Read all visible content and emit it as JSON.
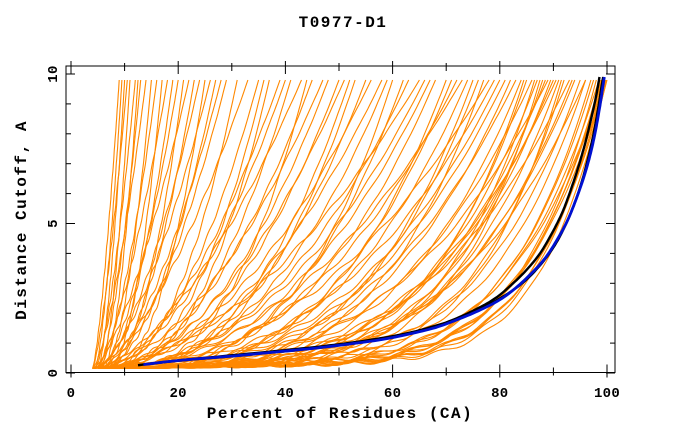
{
  "chart_data": {
    "type": "line",
    "title": "T0977-D1",
    "xlabel": "Percent of Residues (CA)",
    "ylabel": "Distance Cutoff, A",
    "xlim": [
      0,
      100
    ],
    "ylim": [
      0,
      10
    ],
    "grid": false,
    "legend": "none",
    "axes": {
      "x_major_ticks": [
        0,
        20,
        40,
        60,
        80,
        100
      ],
      "x_major_labels": [
        "0",
        "20",
        "40",
        "60",
        "80",
        "100"
      ],
      "x_minor_ticks": [
        10,
        30,
        50,
        70,
        90
      ],
      "y_major_ticks": [
        0,
        5,
        10
      ],
      "y_major_labels": [
        "0",
        "5",
        "10"
      ],
      "y_minor_ticks": [
        1,
        2,
        3,
        4,
        6,
        7,
        8,
        9
      ]
    },
    "colors": {
      "model_curves": "#ff8800",
      "reference_curves": "#000000",
      "highlight_curve": "#0010d0",
      "border": "#000000",
      "background": "#ffffff"
    },
    "curve_top_cutoff": 9.8,
    "curve_start_cutoff": 0.15,
    "series_orange_params_note": "each entry = [percent_at_start, percent_at_top, shape_exponent] for curve cutoff(u)=0.15+0.35u+9.3u^k, u in [0,1], percent=x0+(xe-x0)u",
    "series_orange_params": [
      [
        4,
        9,
        1.4
      ],
      [
        4.5,
        9.5,
        1.5
      ],
      [
        5,
        10,
        1.6
      ],
      [
        4,
        10.5,
        1.4
      ],
      [
        5.5,
        11,
        1.7
      ],
      [
        4.5,
        12,
        1.5
      ],
      [
        6,
        12.5,
        1.8
      ],
      [
        5,
        13,
        1.6
      ],
      [
        4,
        14,
        1.5
      ],
      [
        6,
        15,
        1.9
      ],
      [
        5,
        16,
        1.6
      ],
      [
        7,
        17,
        2
      ],
      [
        4.5,
        18,
        1.5
      ],
      [
        6,
        19,
        1.8
      ],
      [
        5,
        20,
        1.7
      ],
      [
        7,
        21,
        2
      ],
      [
        4,
        22,
        1.5
      ],
      [
        6,
        23,
        1.9
      ],
      [
        5,
        24,
        1.6
      ],
      [
        8,
        25,
        2.1
      ],
      [
        4.5,
        26,
        1.6
      ],
      [
        6,
        27,
        1.9
      ],
      [
        5,
        28,
        1.7
      ],
      [
        5,
        29,
        1.8
      ],
      [
        7,
        31,
        2.2
      ],
      [
        4,
        33,
        1.6
      ],
      [
        6,
        35,
        2
      ],
      [
        8,
        37,
        2.4
      ],
      [
        5,
        39,
        1.8
      ],
      [
        7,
        41,
        2.2
      ],
      [
        4,
        43,
        1.7
      ],
      [
        6,
        45,
        2
      ],
      [
        9,
        44,
        2.6
      ],
      [
        5,
        40,
        1.9
      ],
      [
        7,
        36,
        2.3
      ],
      [
        4,
        47,
        1.9
      ],
      [
        6,
        50,
        2.2
      ],
      [
        8,
        53,
        2.6
      ],
      [
        5,
        56,
        2
      ],
      [
        7,
        59,
        2.4
      ],
      [
        9,
        62,
        2.8
      ],
      [
        4,
        65,
        1.9
      ],
      [
        6,
        48,
        2.1
      ],
      [
        8,
        52,
        2.5
      ],
      [
        5,
        58,
        2.1
      ],
      [
        10,
        60,
        3
      ],
      [
        6,
        63,
        2.3
      ],
      [
        7,
        55,
        2.4
      ],
      [
        5,
        51,
        2
      ],
      [
        5,
        66,
        2.3
      ],
      [
        7,
        68,
        2.7
      ],
      [
        9,
        70,
        3.1
      ],
      [
        6,
        72,
        2.5
      ],
      [
        8,
        74,
        2.9
      ],
      [
        10,
        76,
        3.3
      ],
      [
        5,
        78,
        2.3
      ],
      [
        7,
        80,
        2.8
      ],
      [
        9,
        82,
        3.2
      ],
      [
        6,
        67,
        2.4
      ],
      [
        8,
        71,
        3
      ],
      [
        10,
        75,
        3.4
      ],
      [
        6,
        79,
        2.6
      ],
      [
        7,
        81,
        2.9
      ],
      [
        11,
        77,
        3.6
      ],
      [
        5,
        73,
        2.2
      ],
      [
        6,
        83,
        3
      ],
      [
        8,
        84,
        3.6
      ],
      [
        10,
        85,
        4.2
      ],
      [
        7,
        86,
        3.3
      ],
      [
        9,
        87,
        3.9
      ],
      [
        11,
        88,
        4.5
      ],
      [
        6,
        89,
        3.1
      ],
      [
        8,
        90,
        3.7
      ],
      [
        10,
        91,
        4.3
      ],
      [
        12,
        92,
        4.9
      ],
      [
        7,
        93,
        3.4
      ],
      [
        9,
        94,
        4
      ],
      [
        11,
        95,
        4.6
      ],
      [
        8,
        96,
        3.8
      ],
      [
        10,
        84.5,
        4.4
      ],
      [
        12,
        87.5,
        5
      ],
      [
        7,
        90.5,
        3.5
      ],
      [
        9,
        93.5,
        4.1
      ],
      [
        13,
        91.5,
        5.2
      ],
      [
        8,
        88.5,
        3.9
      ],
      [
        11,
        86.5,
        4.7
      ],
      [
        9,
        89.5,
        4.2
      ],
      [
        10,
        96,
        5
      ],
      [
        12,
        97,
        5.6
      ],
      [
        14,
        98,
        6.2
      ],
      [
        11,
        98.5,
        5.4
      ],
      [
        13,
        99,
        6
      ],
      [
        15,
        99.3,
        6.6
      ],
      [
        10,
        99.6,
        5.2
      ],
      [
        12,
        99.8,
        5.8
      ],
      [
        14,
        100,
        6.4
      ],
      [
        11,
        97.5,
        5.5
      ],
      [
        13,
        98.8,
        6.1
      ],
      [
        15,
        99.5,
        6.8
      ],
      [
        12,
        99.2,
        5.9
      ],
      [
        14,
        99.7,
        6.5
      ],
      [
        16,
        99.9,
        7.2
      ]
    ],
    "series_black_1": [
      [
        12.5,
        0.26
      ],
      [
        17,
        0.36
      ],
      [
        23,
        0.46
      ],
      [
        30,
        0.56
      ],
      [
        37,
        0.68
      ],
      [
        44,
        0.8
      ],
      [
        51,
        0.95
      ],
      [
        57,
        1.1
      ],
      [
        62,
        1.28
      ],
      [
        67,
        1.5
      ],
      [
        71,
        1.76
      ],
      [
        75,
        2.08
      ],
      [
        79,
        2.48
      ],
      [
        82,
        2.92
      ],
      [
        85,
        3.45
      ],
      [
        87.5,
        4.0
      ],
      [
        89.5,
        4.6
      ],
      [
        91.5,
        5.3
      ],
      [
        93,
        6.0
      ],
      [
        94.5,
        6.8
      ],
      [
        95.8,
        7.6
      ],
      [
        96.9,
        8.4
      ],
      [
        97.9,
        9.2
      ],
      [
        98.6,
        9.9
      ]
    ],
    "series_black_2": [
      [
        14.5,
        0.3
      ],
      [
        20,
        0.42
      ],
      [
        27,
        0.54
      ],
      [
        34,
        0.66
      ],
      [
        42,
        0.8
      ],
      [
        50,
        0.96
      ],
      [
        57,
        1.14
      ],
      [
        63,
        1.34
      ],
      [
        68,
        1.58
      ],
      [
        73,
        1.86
      ],
      [
        77,
        2.2
      ],
      [
        81,
        2.6
      ],
      [
        84.5,
        3.05
      ],
      [
        87.5,
        3.6
      ],
      [
        90,
        4.2
      ],
      [
        92,
        4.85
      ],
      [
        93.8,
        5.6
      ],
      [
        95.3,
        6.4
      ],
      [
        96.5,
        7.2
      ],
      [
        97.5,
        8.0
      ],
      [
        98.4,
        8.9
      ],
      [
        99,
        9.6
      ],
      [
        99.3,
        9.9
      ]
    ],
    "series_blue": [
      [
        13.5,
        0.28
      ],
      [
        18,
        0.38
      ],
      [
        24,
        0.48
      ],
      [
        31,
        0.58
      ],
      [
        38,
        0.7
      ],
      [
        45,
        0.82
      ],
      [
        52,
        0.97
      ],
      [
        58,
        1.12
      ],
      [
        63,
        1.3
      ],
      [
        68,
        1.52
      ],
      [
        72,
        1.78
      ],
      [
        76,
        2.08
      ],
      [
        80,
        2.45
      ],
      [
        83,
        2.85
      ],
      [
        86,
        3.35
      ],
      [
        88.5,
        3.85
      ],
      [
        90.5,
        4.4
      ],
      [
        92.5,
        5.05
      ],
      [
        94,
        5.7
      ],
      [
        95.5,
        6.45
      ],
      [
        96.8,
        7.25
      ],
      [
        97.8,
        8.05
      ],
      [
        98.6,
        8.85
      ],
      [
        99.2,
        9.55
      ],
      [
        99.5,
        9.9
      ]
    ]
  }
}
